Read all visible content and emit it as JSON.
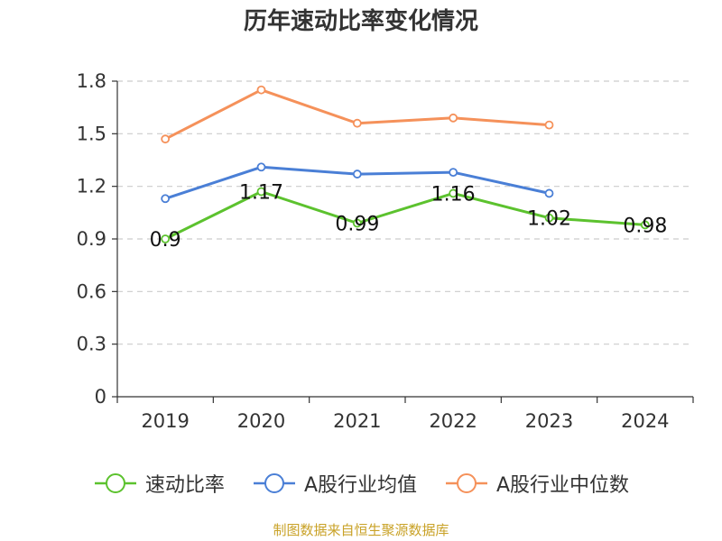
{
  "chart_data": {
    "type": "line",
    "title": "历年速动比率变化情况",
    "categories": [
      "2019",
      "2020",
      "2021",
      "2022",
      "2023",
      "2024"
    ],
    "series": [
      {
        "name": "速动比率",
        "color": "#5cc22e",
        "values": [
          0.9,
          1.17,
          0.99,
          1.16,
          1.02,
          0.98
        ],
        "labels": [
          "0.9",
          "1.17",
          "0.99",
          "1.16",
          "1.02",
          "0.98"
        ]
      },
      {
        "name": "A股行业均值",
        "color": "#4a7fd6",
        "values": [
          1.13,
          1.31,
          1.27,
          1.28,
          1.16,
          null
        ]
      },
      {
        "name": "A股行业中位数",
        "color": "#f5915a",
        "values": [
          1.47,
          1.75,
          1.56,
          1.59,
          1.55,
          null
        ]
      }
    ],
    "ylim": [
      0,
      1.8
    ],
    "yticks": [
      "0",
      "0.3",
      "0.6",
      "0.9",
      "1.2",
      "1.5",
      "1.8"
    ],
    "grid": true,
    "legend_position": "bottom"
  },
  "source": "制图数据来自恒生聚源数据库"
}
